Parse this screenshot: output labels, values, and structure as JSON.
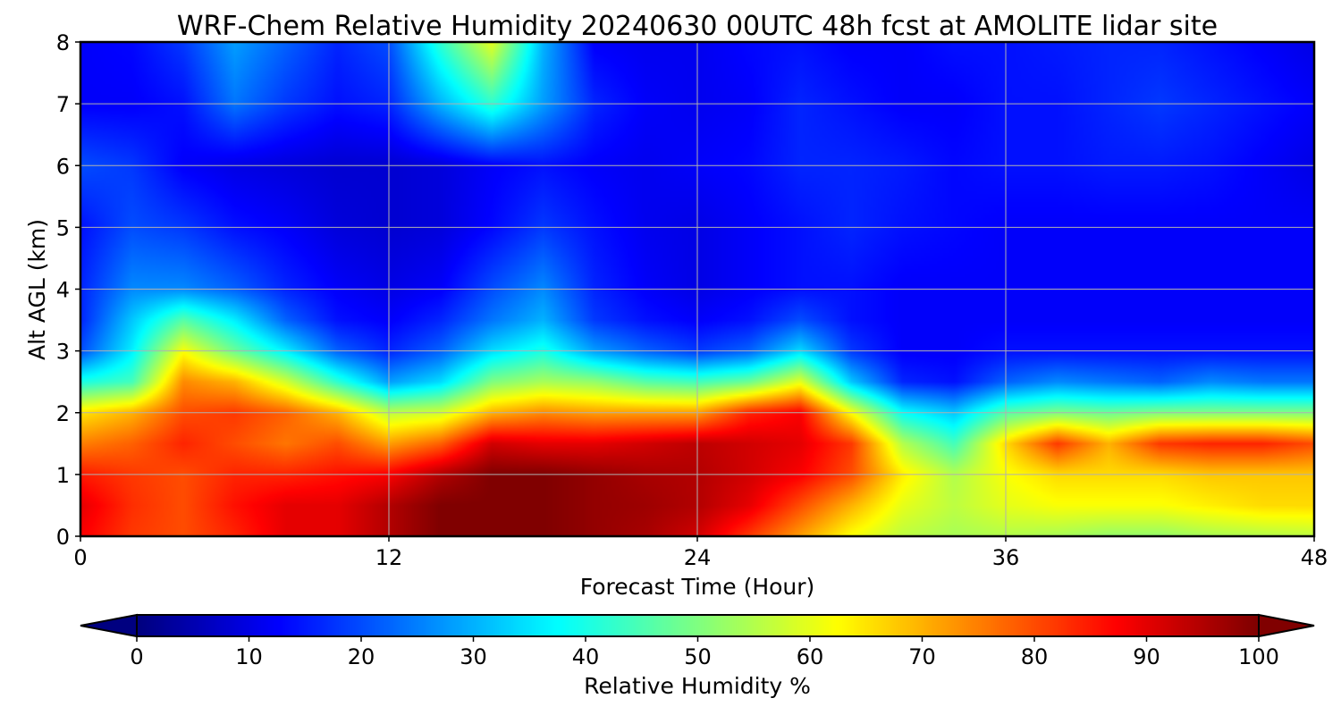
{
  "chart_data": {
    "type": "heatmap",
    "title": "WRF-Chem Relative Humidity 20240630 00UTC 48h fcst at AMOLITE lidar site",
    "xlabel": "Forecast Time (Hour)",
    "ylabel": "Alt AGL (km)",
    "xlim": [
      0,
      48
    ],
    "ylim": [
      0,
      8
    ],
    "xticks": [
      "0",
      "12",
      "24",
      "36",
      "48"
    ],
    "yticks": [
      "0",
      "1",
      "2",
      "3",
      "4",
      "5",
      "6",
      "7",
      "8"
    ],
    "grid": true,
    "colormap": "jet",
    "x": [
      0,
      2,
      4,
      6,
      8,
      10,
      12,
      14,
      16,
      18,
      20,
      22,
      24,
      26,
      28,
      30,
      32,
      34,
      36,
      38,
      40,
      42,
      44,
      46,
      48
    ],
    "y": [
      0,
      0.5,
      1,
      1.5,
      2,
      2.5,
      3,
      3.5,
      4,
      5,
      6,
      7,
      8
    ],
    "z": [
      [
        88,
        82,
        80,
        84,
        90,
        90,
        95,
        100,
        100,
        100,
        98,
        96,
        92,
        82,
        72,
        62,
        56,
        54,
        55,
        54,
        52,
        52,
        54,
        55,
        56
      ],
      [
        90,
        83,
        80,
        86,
        90,
        90,
        95,
        100,
        100,
        100,
        98,
        97,
        95,
        90,
        80,
        70,
        60,
        56,
        60,
        62,
        62,
        62,
        64,
        66,
        66
      ],
      [
        85,
        82,
        80,
        84,
        84,
        86,
        88,
        95,
        100,
        100,
        98,
        96,
        95,
        92,
        88,
        80,
        64,
        55,
        62,
        66,
        66,
        66,
        68,
        68,
        68
      ],
      [
        75,
        78,
        84,
        80,
        76,
        80,
        72,
        78,
        92,
        90,
        90,
        92,
        94,
        92,
        90,
        82,
        55,
        44,
        66,
        82,
        70,
        82,
        84,
        84,
        80
      ],
      [
        65,
        70,
        80,
        82,
        78,
        70,
        56,
        58,
        70,
        74,
        72,
        72,
        72,
        84,
        88,
        62,
        38,
        32,
        46,
        50,
        48,
        50,
        50,
        50,
        50
      ],
      [
        40,
        44,
        74,
        70,
        58,
        42,
        28,
        34,
        50,
        54,
        52,
        46,
        44,
        48,
        60,
        32,
        16,
        14,
        22,
        26,
        24,
        22,
        26,
        24,
        24
      ],
      [
        20,
        36,
        62,
        48,
        36,
        22,
        16,
        22,
        34,
        40,
        28,
        22,
        18,
        22,
        34,
        18,
        12,
        12,
        14,
        14,
        14,
        14,
        14,
        14,
        14
      ],
      [
        16,
        32,
        46,
        36,
        22,
        14,
        12,
        16,
        24,
        30,
        18,
        14,
        12,
        14,
        20,
        14,
        12,
        12,
        12,
        12,
        12,
        12,
        12,
        12,
        12
      ],
      [
        16,
        26,
        26,
        22,
        16,
        12,
        10,
        12,
        20,
        26,
        16,
        12,
        10,
        12,
        14,
        14,
        12,
        12,
        12,
        12,
        12,
        12,
        12,
        12,
        12
      ],
      [
        14,
        20,
        18,
        14,
        12,
        9,
        8,
        9,
        13,
        18,
        14,
        11,
        10,
        12,
        14,
        16,
        14,
        13,
        12,
        12,
        12,
        12,
        12,
        12,
        12
      ],
      [
        20,
        18,
        12,
        10,
        9,
        8,
        8,
        9,
        12,
        14,
        12,
        11,
        12,
        13,
        16,
        16,
        15,
        13,
        14,
        14,
        15,
        15,
        14,
        12,
        10
      ],
      [
        12,
        12,
        14,
        24,
        18,
        14,
        16,
        30,
        42,
        28,
        16,
        12,
        11,
        12,
        16,
        14,
        12,
        12,
        14,
        14,
        16,
        18,
        16,
        14,
        12
      ],
      [
        12,
        13,
        18,
        28,
        22,
        16,
        20,
        42,
        60,
        30,
        12,
        11,
        11,
        13,
        14,
        12,
        12,
        14,
        14,
        15,
        16,
        16,
        14,
        12,
        10
      ]
    ],
    "colorbar": {
      "label": "Relative Humidity %",
      "ticks": [
        "0",
        "10",
        "20",
        "30",
        "40",
        "50",
        "60",
        "70",
        "80",
        "90",
        "100"
      ],
      "range": [
        0,
        100
      ],
      "extend": "both"
    }
  }
}
